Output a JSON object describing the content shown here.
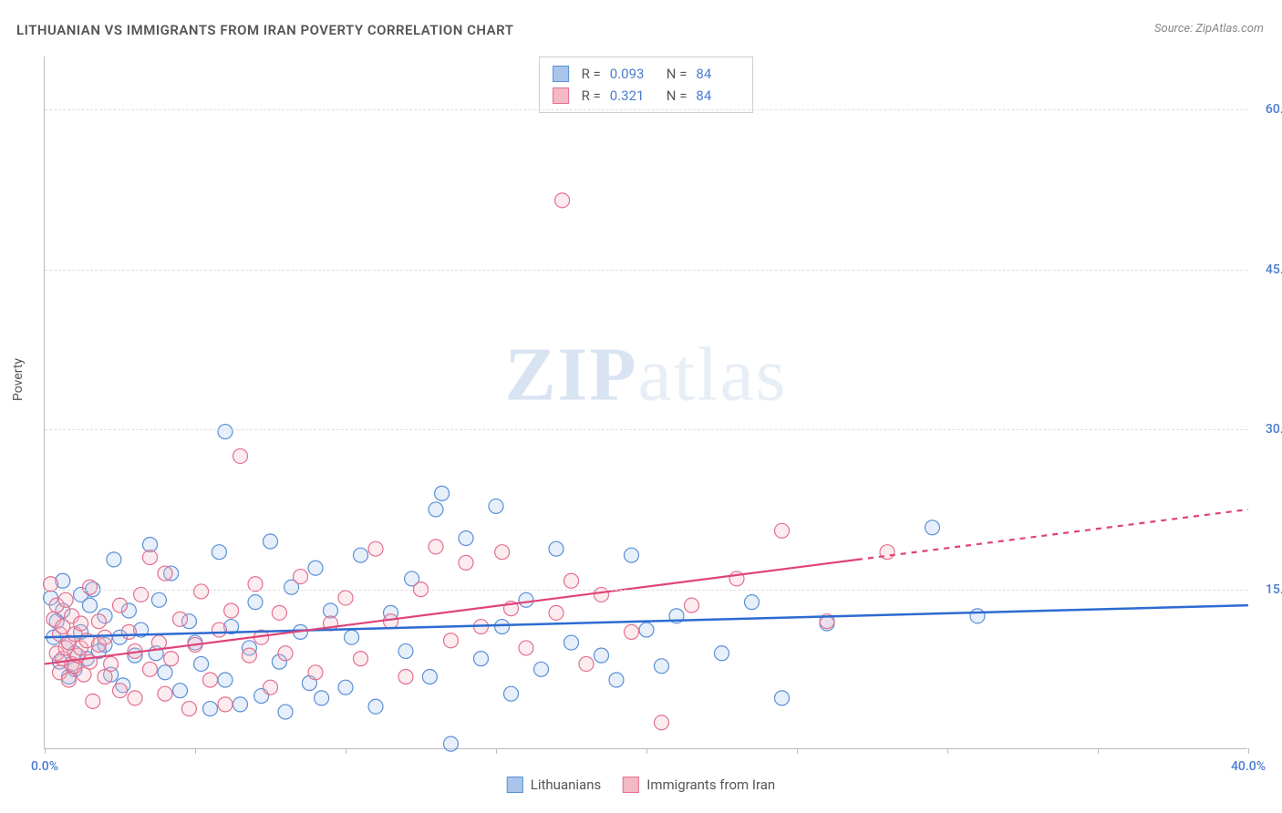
{
  "title": "LITHUANIAN VS IMMIGRANTS FROM IRAN POVERTY CORRELATION CHART",
  "source": "Source: ZipAtlas.com",
  "watermark_a": "ZIP",
  "watermark_b": "atlas",
  "y_axis_label": "Poverty",
  "chart": {
    "type": "scatter",
    "xlim": [
      0,
      40
    ],
    "ylim": [
      0,
      65
    ],
    "x_ticks": [
      0,
      5,
      10,
      15,
      20,
      25,
      30,
      35,
      40
    ],
    "x_tick_labels": {
      "0": "0.0%",
      "40": "40.0%"
    },
    "y_ticks": [
      15,
      30,
      45,
      60
    ],
    "y_tick_labels": {
      "15": "15.0%",
      "30": "30.0%",
      "45": "45.0%",
      "60": "60.0%"
    },
    "background_color": "#ffffff",
    "grid_color": "#dddddd",
    "axis_color": "#bbbbbb",
    "tick_label_color": "#4a7bd0",
    "marker_radius": 8,
    "marker_stroke_width": 1.2,
    "marker_fill_opacity": 0.28,
    "series": [
      {
        "name": "Lithuanians",
        "color_fill": "#a9c5ec",
        "color_stroke": "#5b8fd6",
        "R_label": "R =",
        "R": "0.093",
        "N_label": "N =",
        "N": "84",
        "trend": {
          "x1": 0,
          "y1": 10.5,
          "x2": 40,
          "y2": 13.5,
          "color": "#2d6bd1",
          "width": 2.5,
          "dash_after_x": 40
        },
        "points": [
          [
            0.2,
            14.2
          ],
          [
            0.3,
            10.5
          ],
          [
            0.4,
            12.0
          ],
          [
            0.5,
            8.2
          ],
          [
            0.6,
            15.8
          ],
          [
            0.6,
            13.0
          ],
          [
            0.8,
            6.8
          ],
          [
            0.8,
            10.0
          ],
          [
            1.0,
            9.0
          ],
          [
            1.0,
            7.5
          ],
          [
            1.2,
            14.5
          ],
          [
            1.2,
            11.0
          ],
          [
            1.4,
            8.5
          ],
          [
            1.5,
            13.5
          ],
          [
            1.6,
            15.0
          ],
          [
            1.8,
            9.2
          ],
          [
            2.0,
            9.8
          ],
          [
            2.0,
            12.5
          ],
          [
            2.2,
            7.0
          ],
          [
            2.3,
            17.8
          ],
          [
            2.5,
            10.5
          ],
          [
            2.6,
            6.0
          ],
          [
            2.8,
            13.0
          ],
          [
            3.0,
            8.8
          ],
          [
            3.2,
            11.2
          ],
          [
            3.5,
            19.2
          ],
          [
            3.7,
            9.0
          ],
          [
            3.8,
            14.0
          ],
          [
            4.0,
            7.2
          ],
          [
            4.2,
            16.5
          ],
          [
            4.5,
            5.5
          ],
          [
            4.8,
            12.0
          ],
          [
            5.0,
            10.0
          ],
          [
            5.2,
            8.0
          ],
          [
            5.5,
            3.8
          ],
          [
            5.8,
            18.5
          ],
          [
            6.0,
            6.5
          ],
          [
            6.0,
            29.8
          ],
          [
            6.2,
            11.5
          ],
          [
            6.5,
            4.2
          ],
          [
            6.8,
            9.5
          ],
          [
            7.0,
            13.8
          ],
          [
            7.2,
            5.0
          ],
          [
            7.5,
            19.5
          ],
          [
            7.8,
            8.2
          ],
          [
            8.0,
            3.5
          ],
          [
            8.2,
            15.2
          ],
          [
            8.5,
            11.0
          ],
          [
            8.8,
            6.2
          ],
          [
            9.0,
            17.0
          ],
          [
            9.2,
            4.8
          ],
          [
            9.5,
            13.0
          ],
          [
            10.0,
            5.8
          ],
          [
            10.2,
            10.5
          ],
          [
            10.5,
            18.2
          ],
          [
            11.0,
            4.0
          ],
          [
            11.5,
            12.8
          ],
          [
            12.0,
            9.2
          ],
          [
            12.2,
            16.0
          ],
          [
            12.8,
            6.8
          ],
          [
            13.0,
            22.5
          ],
          [
            13.2,
            24.0
          ],
          [
            13.5,
            0.5
          ],
          [
            14.0,
            19.8
          ],
          [
            14.5,
            8.5
          ],
          [
            15.0,
            22.8
          ],
          [
            15.2,
            11.5
          ],
          [
            15.5,
            5.2
          ],
          [
            16.0,
            14.0
          ],
          [
            16.5,
            7.5
          ],
          [
            17.0,
            18.8
          ],
          [
            17.5,
            10.0
          ],
          [
            18.5,
            8.8
          ],
          [
            19.0,
            6.5
          ],
          [
            19.5,
            18.2
          ],
          [
            20.0,
            11.2
          ],
          [
            20.5,
            7.8
          ],
          [
            21.0,
            12.5
          ],
          [
            22.5,
            9.0
          ],
          [
            23.5,
            13.8
          ],
          [
            24.5,
            4.8
          ],
          [
            26.0,
            11.8
          ],
          [
            29.5,
            20.8
          ],
          [
            31.0,
            12.5
          ]
        ]
      },
      {
        "name": "Immigrants from Iran",
        "color_fill": "#f4b9c6",
        "color_stroke": "#e56f8f",
        "R_label": "R =",
        "R": "0.321",
        "N_label": "N =",
        "N": "84",
        "trend": {
          "x1": 0,
          "y1": 8.0,
          "x2": 40,
          "y2": 22.5,
          "color": "#e04278",
          "width": 2.2,
          "dash_after_x": 27
        },
        "points": [
          [
            0.2,
            15.5
          ],
          [
            0.3,
            12.2
          ],
          [
            0.4,
            9.0
          ],
          [
            0.4,
            13.5
          ],
          [
            0.5,
            7.2
          ],
          [
            0.5,
            10.8
          ],
          [
            0.6,
            8.5
          ],
          [
            0.6,
            11.5
          ],
          [
            0.7,
            9.5
          ],
          [
            0.7,
            14.0
          ],
          [
            0.8,
            6.5
          ],
          [
            0.8,
            10.0
          ],
          [
            0.9,
            8.0
          ],
          [
            0.9,
            12.5
          ],
          [
            1.0,
            7.8
          ],
          [
            1.0,
            10.8
          ],
          [
            1.1,
            8.8
          ],
          [
            1.2,
            9.5
          ],
          [
            1.2,
            11.8
          ],
          [
            1.3,
            7.0
          ],
          [
            1.4,
            10.2
          ],
          [
            1.5,
            15.2
          ],
          [
            1.5,
            8.2
          ],
          [
            1.6,
            4.5
          ],
          [
            1.8,
            9.8
          ],
          [
            1.8,
            12.0
          ],
          [
            2.0,
            6.8
          ],
          [
            2.0,
            10.5
          ],
          [
            2.2,
            8.0
          ],
          [
            2.5,
            13.5
          ],
          [
            2.5,
            5.5
          ],
          [
            2.8,
            11.0
          ],
          [
            3.0,
            9.2
          ],
          [
            3.0,
            4.8
          ],
          [
            3.2,
            14.5
          ],
          [
            3.5,
            7.5
          ],
          [
            3.5,
            18.0
          ],
          [
            3.8,
            10.0
          ],
          [
            4.0,
            5.2
          ],
          [
            4.0,
            16.5
          ],
          [
            4.2,
            8.5
          ],
          [
            4.5,
            12.2
          ],
          [
            4.8,
            3.8
          ],
          [
            5.0,
            9.8
          ],
          [
            5.2,
            14.8
          ],
          [
            5.5,
            6.5
          ],
          [
            5.8,
            11.2
          ],
          [
            6.0,
            4.2
          ],
          [
            6.2,
            13.0
          ],
          [
            6.5,
            27.5
          ],
          [
            6.8,
            8.8
          ],
          [
            7.0,
            15.5
          ],
          [
            7.2,
            10.5
          ],
          [
            7.5,
            5.8
          ],
          [
            7.8,
            12.8
          ],
          [
            8.0,
            9.0
          ],
          [
            8.5,
            16.2
          ],
          [
            9.0,
            7.2
          ],
          [
            9.5,
            11.8
          ],
          [
            10.0,
            14.2
          ],
          [
            10.5,
            8.5
          ],
          [
            11.0,
            18.8
          ],
          [
            11.5,
            12.0
          ],
          [
            12.0,
            6.8
          ],
          [
            12.5,
            15.0
          ],
          [
            13.0,
            19.0
          ],
          [
            13.5,
            10.2
          ],
          [
            14.0,
            17.5
          ],
          [
            14.5,
            11.5
          ],
          [
            15.2,
            18.5
          ],
          [
            15.5,
            13.2
          ],
          [
            16.0,
            9.5
          ],
          [
            17.0,
            12.8
          ],
          [
            17.2,
            51.5
          ],
          [
            17.5,
            15.8
          ],
          [
            18.0,
            8.0
          ],
          [
            18.5,
            14.5
          ],
          [
            19.5,
            11.0
          ],
          [
            20.5,
            2.5
          ],
          [
            21.5,
            13.5
          ],
          [
            23.0,
            16.0
          ],
          [
            24.5,
            20.5
          ],
          [
            26.0,
            12.0
          ],
          [
            28.0,
            18.5
          ]
        ]
      }
    ]
  },
  "bottom_legend": [
    {
      "label": "Lithuanians",
      "fill": "#a9c5ec",
      "stroke": "#5b8fd6"
    },
    {
      "label": "Immigrants from Iran",
      "fill": "#f4b9c6",
      "stroke": "#e56f8f"
    }
  ]
}
